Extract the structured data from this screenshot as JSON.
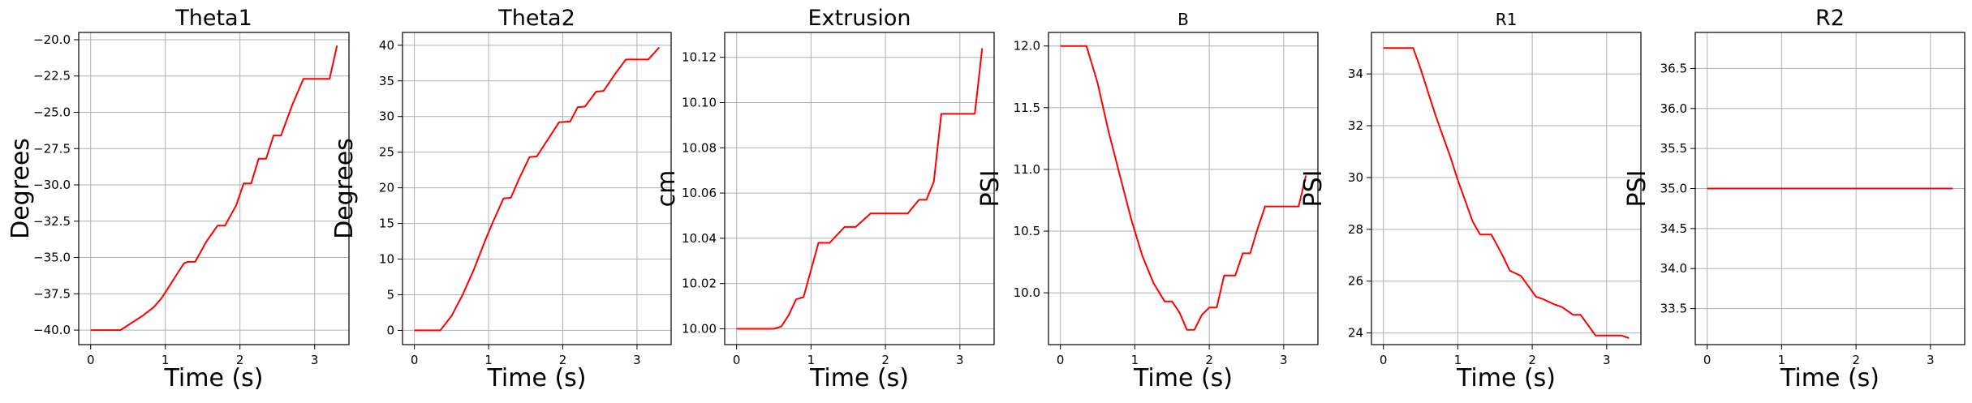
{
  "chart_data": [
    {
      "type": "line",
      "title": "Theta1",
      "xlabel": "Time (s)",
      "ylabel": "Degrees",
      "xlim": [
        -0.16,
        3.46
      ],
      "ylim": [
        -41.0,
        -19.5
      ],
      "xticks": [
        0,
        1,
        2,
        3
      ],
      "xtick_labels": [
        "0",
        "1",
        "2",
        "3"
      ],
      "yticks": [
        -40.0,
        -37.5,
        -35.0,
        -32.5,
        -30.0,
        -27.5,
        -25.0,
        -22.5,
        -20.0
      ],
      "ytick_labels": [
        "−40.0",
        "−37.5",
        "−35.0",
        "−32.5",
        "−30.0",
        "−27.5",
        "−25.0",
        "−22.5",
        "−20.0"
      ],
      "grid": true,
      "color": "#ff0000",
      "x": [
        0.0,
        0.4,
        0.55,
        0.7,
        0.85,
        0.95,
        1.05,
        1.15,
        1.25,
        1.3,
        1.4,
        1.55,
        1.7,
        1.8,
        1.95,
        2.05,
        2.15,
        2.25,
        2.35,
        2.45,
        2.55,
        2.7,
        2.85,
        3.05,
        3.2,
        3.3
      ],
      "y": [
        -40.0,
        -40.0,
        -39.5,
        -39.0,
        -38.4,
        -37.8,
        -37.0,
        -36.2,
        -35.4,
        -35.3,
        -35.3,
        -33.9,
        -32.8,
        -32.8,
        -31.4,
        -29.9,
        -29.9,
        -28.2,
        -28.2,
        -26.6,
        -26.6,
        -24.5,
        -22.7,
        -22.7,
        -22.7,
        -20.4
      ]
    },
    {
      "type": "line",
      "title": "Theta2",
      "xlabel": "Time (s)",
      "ylabel": "Degrees",
      "xlim": [
        -0.16,
        3.46
      ],
      "ylim": [
        -2.0,
        41.8
      ],
      "xticks": [
        0,
        1,
        2,
        3
      ],
      "xtick_labels": [
        "0",
        "1",
        "2",
        "3"
      ],
      "yticks": [
        0,
        5,
        10,
        15,
        20,
        25,
        30,
        35,
        40
      ],
      "ytick_labels": [
        "0",
        "5",
        "10",
        "15",
        "20",
        "25",
        "30",
        "35",
        "40"
      ],
      "grid": true,
      "color": "#ff0000",
      "x": [
        0.0,
        0.35,
        0.5,
        0.65,
        0.8,
        0.95,
        1.05,
        1.2,
        1.3,
        1.4,
        1.55,
        1.65,
        1.8,
        1.95,
        2.1,
        2.2,
        2.3,
        2.45,
        2.55,
        2.7,
        2.85,
        3.0,
        3.15,
        3.3
      ],
      "y": [
        0.0,
        0.0,
        2.0,
        5.0,
        8.5,
        12.5,
        15.0,
        18.5,
        18.6,
        21.0,
        24.3,
        24.4,
        26.8,
        29.2,
        29.3,
        31.3,
        31.4,
        33.5,
        33.6,
        35.9,
        38.0,
        38.0,
        38.0,
        39.7
      ]
    },
    {
      "type": "line",
      "title": "Extrusion",
      "xlabel": "Time (s)",
      "ylabel": "cm",
      "xlim": [
        -0.16,
        3.46
      ],
      "ylim": [
        9.993,
        10.131
      ],
      "xticks": [
        0,
        1,
        2,
        3
      ],
      "xtick_labels": [
        "0",
        "1",
        "2",
        "3"
      ],
      "yticks": [
        10.0,
        10.02,
        10.04,
        10.06,
        10.08,
        10.1,
        10.12
      ],
      "ytick_labels": [
        "10.00",
        "10.02",
        "10.04",
        "10.06",
        "10.08",
        "10.10",
        "10.12"
      ],
      "grid": true,
      "color": "#ff0000",
      "x": [
        0.0,
        0.5,
        0.6,
        0.7,
        0.8,
        0.9,
        1.0,
        1.1,
        1.25,
        1.45,
        1.6,
        1.8,
        1.95,
        2.3,
        2.45,
        2.55,
        2.65,
        2.75,
        2.85,
        3.05,
        3.2,
        3.3
      ],
      "y": [
        10.0,
        10.0,
        10.001,
        10.006,
        10.013,
        10.014,
        10.026,
        10.038,
        10.038,
        10.045,
        10.045,
        10.051,
        10.051,
        10.051,
        10.057,
        10.057,
        10.065,
        10.095,
        10.095,
        10.095,
        10.095,
        10.124
      ]
    },
    {
      "type": "line",
      "title": "B",
      "xlabel": "Time (s)",
      "ylabel": "PSI",
      "xlim": [
        -0.16,
        3.46
      ],
      "ylim": [
        9.58,
        12.11
      ],
      "xticks": [
        0,
        1,
        2,
        3
      ],
      "xtick_labels": [
        "0",
        "1",
        "2",
        "3"
      ],
      "yticks": [
        10.0,
        10.5,
        11.0,
        11.5,
        12.0
      ],
      "ytick_labels": [
        "10.0",
        "10.5",
        "11.0",
        "11.5",
        "12.0"
      ],
      "grid": true,
      "color": "#ff0000",
      "x": [
        0.0,
        0.35,
        0.5,
        0.65,
        0.8,
        0.95,
        1.1,
        1.25,
        1.4,
        1.5,
        1.6,
        1.7,
        1.8,
        1.9,
        2.0,
        2.1,
        2.2,
        2.35,
        2.45,
        2.55,
        2.65,
        2.75,
        2.9,
        3.05,
        3.2,
        3.3
      ],
      "y": [
        12.0,
        12.0,
        11.7,
        11.3,
        10.95,
        10.6,
        10.3,
        10.08,
        9.93,
        9.93,
        9.84,
        9.7,
        9.7,
        9.82,
        9.88,
        9.88,
        10.14,
        10.14,
        10.32,
        10.32,
        10.52,
        10.7,
        10.7,
        10.7,
        10.7,
        10.95
      ]
    },
    {
      "type": "line",
      "title": "R1",
      "xlabel": "Time (s)",
      "ylabel": "PSI",
      "xlim": [
        -0.16,
        3.46
      ],
      "ylim": [
        23.55,
        35.6
      ],
      "xticks": [
        0,
        1,
        2,
        3
      ],
      "xtick_labels": [
        "0",
        "1",
        "2",
        "3"
      ],
      "yticks": [
        24,
        26,
        28,
        30,
        32,
        34
      ],
      "ytick_labels": [
        "24",
        "26",
        "28",
        "30",
        "32",
        "34"
      ],
      "grid": true,
      "color": "#ff0000",
      "x": [
        0.0,
        0.4,
        0.5,
        0.6,
        0.7,
        0.8,
        0.9,
        1.0,
        1.1,
        1.2,
        1.3,
        1.45,
        1.6,
        1.7,
        1.85,
        1.95,
        2.05,
        2.15,
        2.3,
        2.4,
        2.55,
        2.65,
        2.75,
        2.85,
        2.95,
        3.1,
        3.2,
        3.3
      ],
      "y": [
        35.0,
        35.0,
        34.2,
        33.3,
        32.4,
        31.6,
        30.8,
        29.9,
        29.1,
        28.3,
        27.8,
        27.8,
        27.0,
        26.4,
        26.2,
        25.8,
        25.4,
        25.3,
        25.1,
        25.0,
        24.7,
        24.7,
        24.3,
        23.9,
        23.9,
        23.9,
        23.9,
        23.8
      ]
    },
    {
      "type": "line",
      "title": "R2",
      "xlabel": "Time (s)",
      "ylabel": "PSI",
      "xlim": [
        -0.16,
        3.46
      ],
      "ylim": [
        33.05,
        36.95
      ],
      "xticks": [
        0,
        1,
        2,
        3
      ],
      "xtick_labels": [
        "0",
        "1",
        "2",
        "3"
      ],
      "yticks": [
        33.5,
        34.0,
        34.5,
        35.0,
        35.5,
        36.0,
        36.5
      ],
      "ytick_labels": [
        "33.5",
        "34.0",
        "34.5",
        "35.0",
        "35.5",
        "36.0",
        "36.5"
      ],
      "grid": true,
      "color": "#ff0000",
      "x": [
        0.0,
        3.3
      ],
      "y": [
        35.0,
        35.0
      ]
    }
  ]
}
